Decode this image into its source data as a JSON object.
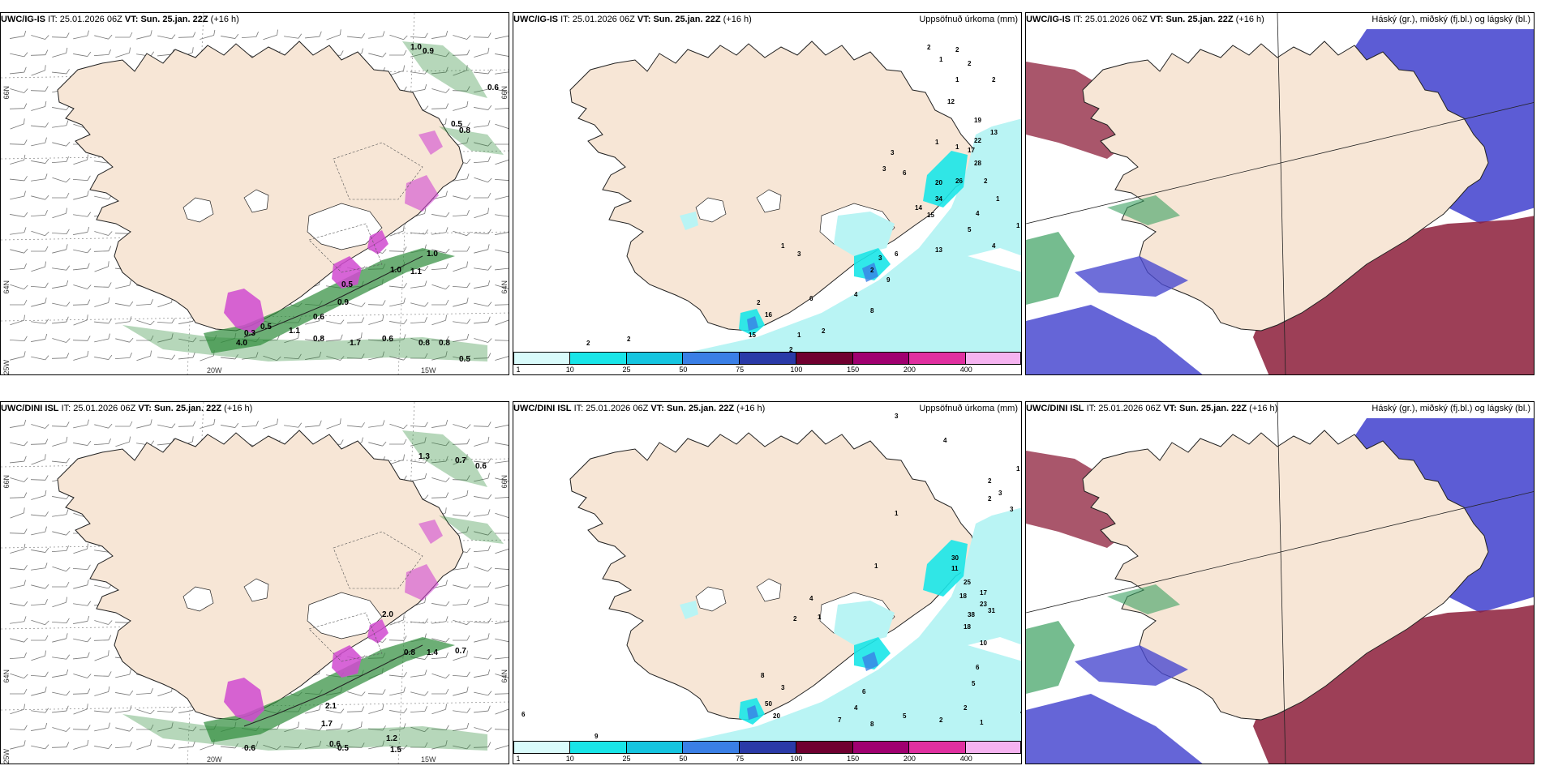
{
  "colors": {
    "land": "#f7e6d6",
    "precip_light": "#b9f4f4",
    "precip_cyan": "#19e5e8",
    "precip_blue": "#3a7fe6",
    "snow_purple": "#d04ad0",
    "wind_green": "#2e8b3a",
    "cloud_high": "#8c1d3a",
    "cloud_mid": "#4a4ad0",
    "cloud_low": "#3aa060"
  },
  "panels": [
    {
      "row": "top",
      "kind": "weather",
      "model": "UWC/IG-IS",
      "it_label": "IT:",
      "it_value": "25.01.2026 06Z",
      "vt_label": "VT: Sun. 25.jan. 22Z",
      "lead": "(+16 h)",
      "lat_labels": [
        "66N",
        "64N",
        "25W",
        "20W",
        "15W",
        "66N",
        "64N"
      ],
      "value_labels": [
        "1.0",
        "0.9",
        "0.6",
        "0.5",
        "0.8",
        "1.0",
        "1.1",
        "1.0",
        "0.6",
        "0.9",
        "0.5",
        "0.3",
        "0.5",
        "4.0",
        "1.1",
        "0.8",
        "1.7",
        "0.6",
        "0.8",
        "0.8",
        "0.5"
      ]
    },
    {
      "row": "top",
      "kind": "precip",
      "model": "UWC/IG-IS",
      "it_label": "IT:",
      "it_value": "25.01.2026 06Z",
      "vt_label": "VT: Sun. 25.jan. 22Z",
      "lead": "(+16 h)",
      "right_title": "Uppsöfnuð úrkoma (mm)",
      "colorbar": [
        "1",
        "10",
        "25",
        "50",
        "75",
        "100",
        "150",
        "200",
        "400"
      ],
      "value_labels": [
        "2",
        "2",
        "2",
        "1",
        "2",
        "1",
        "12",
        "19",
        "13",
        "22",
        "17",
        "1",
        "1",
        "3",
        "28",
        "3",
        "20",
        "26",
        "2",
        "6",
        "34",
        "15",
        "4",
        "1",
        "14",
        "13",
        "5",
        "4",
        "1",
        "3",
        "1",
        "6",
        "3",
        "2",
        "9",
        "2",
        "6",
        "16",
        "4",
        "8",
        "2",
        "15",
        "2",
        "1",
        "2",
        "2"
      ]
    },
    {
      "row": "top",
      "kind": "cloud",
      "model": "UWC/IG-IS",
      "it_label": "IT:",
      "it_value": "25.01.2026 06Z",
      "vt_label": "VT: Sun. 25.jan. 22Z",
      "lead": "(+16 h)",
      "right_title": "Háský (gr.), miðský (fj.bl.) og lágský (bl.)"
    },
    {
      "row": "bottom",
      "kind": "weather",
      "model": "UWC/DINI ISL",
      "it_label": "IT:",
      "it_value": "25.01.2026 06Z",
      "vt_label": "VT: Sun. 25.jan. 22Z",
      "lead": "(+16 h)",
      "lat_labels": [
        "66N",
        "64N",
        "25W",
        "20W",
        "15W",
        "66N",
        "64N"
      ],
      "value_labels": [
        "1.3",
        "0.7",
        "0.6",
        "2.0",
        "0.8",
        "1.4",
        "0.7",
        "2.1",
        "1.7",
        "0.6",
        "0.5",
        "1.2",
        "1.5",
        "0.6"
      ]
    },
    {
      "row": "bottom",
      "kind": "precip",
      "model": "UWC/DINI ISL",
      "it_label": "IT:",
      "it_value": "25.01.2026 06Z",
      "vt_label": "VT: Sun. 25.jan. 22Z",
      "lead": "(+16 h)",
      "right_title": "Uppsöfnuð úrkoma (mm)",
      "colorbar": [
        "1",
        "10",
        "25",
        "50",
        "75",
        "100",
        "150",
        "200",
        "400"
      ],
      "value_labels": [
        "3",
        "4",
        "1",
        "2",
        "3",
        "2",
        "3",
        "1",
        "30",
        "25",
        "11",
        "17",
        "18",
        "23",
        "38",
        "31",
        "18",
        "10",
        "5",
        "6",
        "1",
        "4",
        "1",
        "2",
        "8",
        "3",
        "50",
        "20",
        "6",
        "4",
        "7",
        "8",
        "5",
        "4",
        "2",
        "2",
        "1",
        "4",
        "6",
        "9",
        "3"
      ]
    },
    {
      "row": "bottom",
      "kind": "cloud",
      "model": "UWC/DINI ISL",
      "it_label": "IT:",
      "it_value": "25.01.2026 06Z",
      "vt_label": "VT: Sun. 25.jan. 22Z",
      "lead": "(+16 h)",
      "right_title": "Háský (gr.), miðský (fj.bl.) og lágský (bl.)"
    }
  ]
}
